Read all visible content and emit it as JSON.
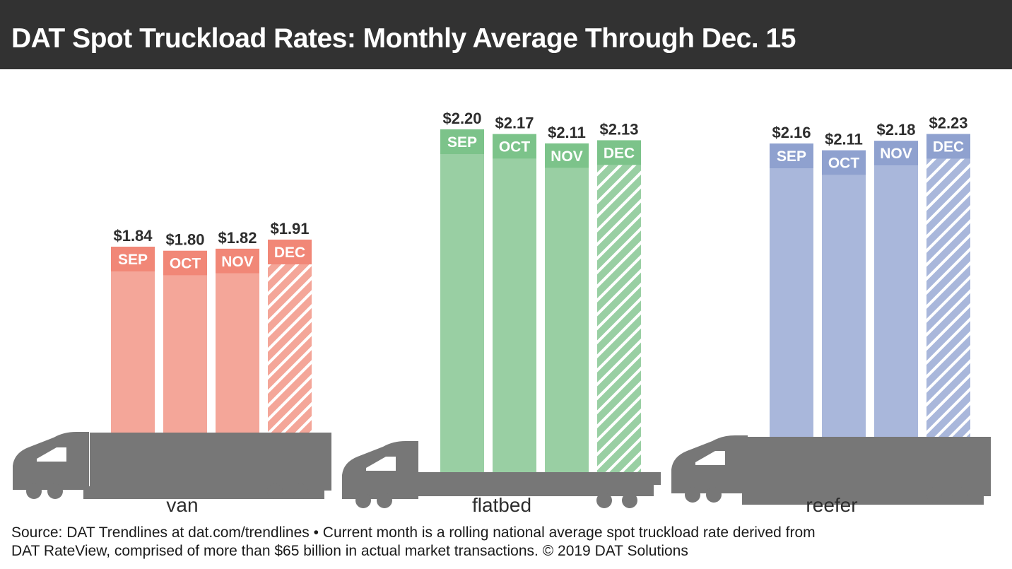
{
  "header": {
    "title": "DAT Spot Truckload Rates: Monthly Average Through Dec. 15"
  },
  "footer": {
    "line1": "Source: DAT Trendlines at dat.com/trendlines • Current month is a rolling national average spot truckload rate derived from",
    "line2": "DAT RateView, comprised of more than $65 billion in actual market transactions. © 2019 DAT Solutions"
  },
  "colors": {
    "header_bg": "#323232",
    "truck": "#777777",
    "van_bar": "#f4a699",
    "van_cap": "#f18777",
    "flatbed_bar": "#99cfa3",
    "flatbed_cap": "#7cc38a",
    "reefer_bar": "#a9b7db",
    "reefer_cap": "#8fa1cf"
  },
  "chart_data": [
    {
      "type": "bar",
      "group": "van",
      "categories": [
        "SEP",
        "OCT",
        "NOV",
        "DEC"
      ],
      "values": [
        1.84,
        1.8,
        1.82,
        1.91
      ],
      "value_labels": [
        "$1.84",
        "$1.80",
        "$1.82",
        "$1.91"
      ],
      "partial": [
        false,
        false,
        false,
        true
      ],
      "xlabel": "van"
    },
    {
      "type": "bar",
      "group": "flatbed",
      "categories": [
        "SEP",
        "OCT",
        "NOV",
        "DEC"
      ],
      "values": [
        2.2,
        2.17,
        2.11,
        2.13
      ],
      "value_labels": [
        "$2.20",
        "$2.17",
        "$2.11",
        "$2.13"
      ],
      "partial": [
        false,
        false,
        false,
        true
      ],
      "xlabel": "flatbed"
    },
    {
      "type": "bar",
      "group": "reefer",
      "categories": [
        "SEP",
        "OCT",
        "NOV",
        "DEC"
      ],
      "values": [
        2.16,
        2.11,
        2.18,
        2.23
      ],
      "value_labels": [
        "$2.16",
        "$2.11",
        "$2.18",
        "$2.23"
      ],
      "partial": [
        false,
        false,
        false,
        true
      ],
      "xlabel": "reefer"
    }
  ]
}
